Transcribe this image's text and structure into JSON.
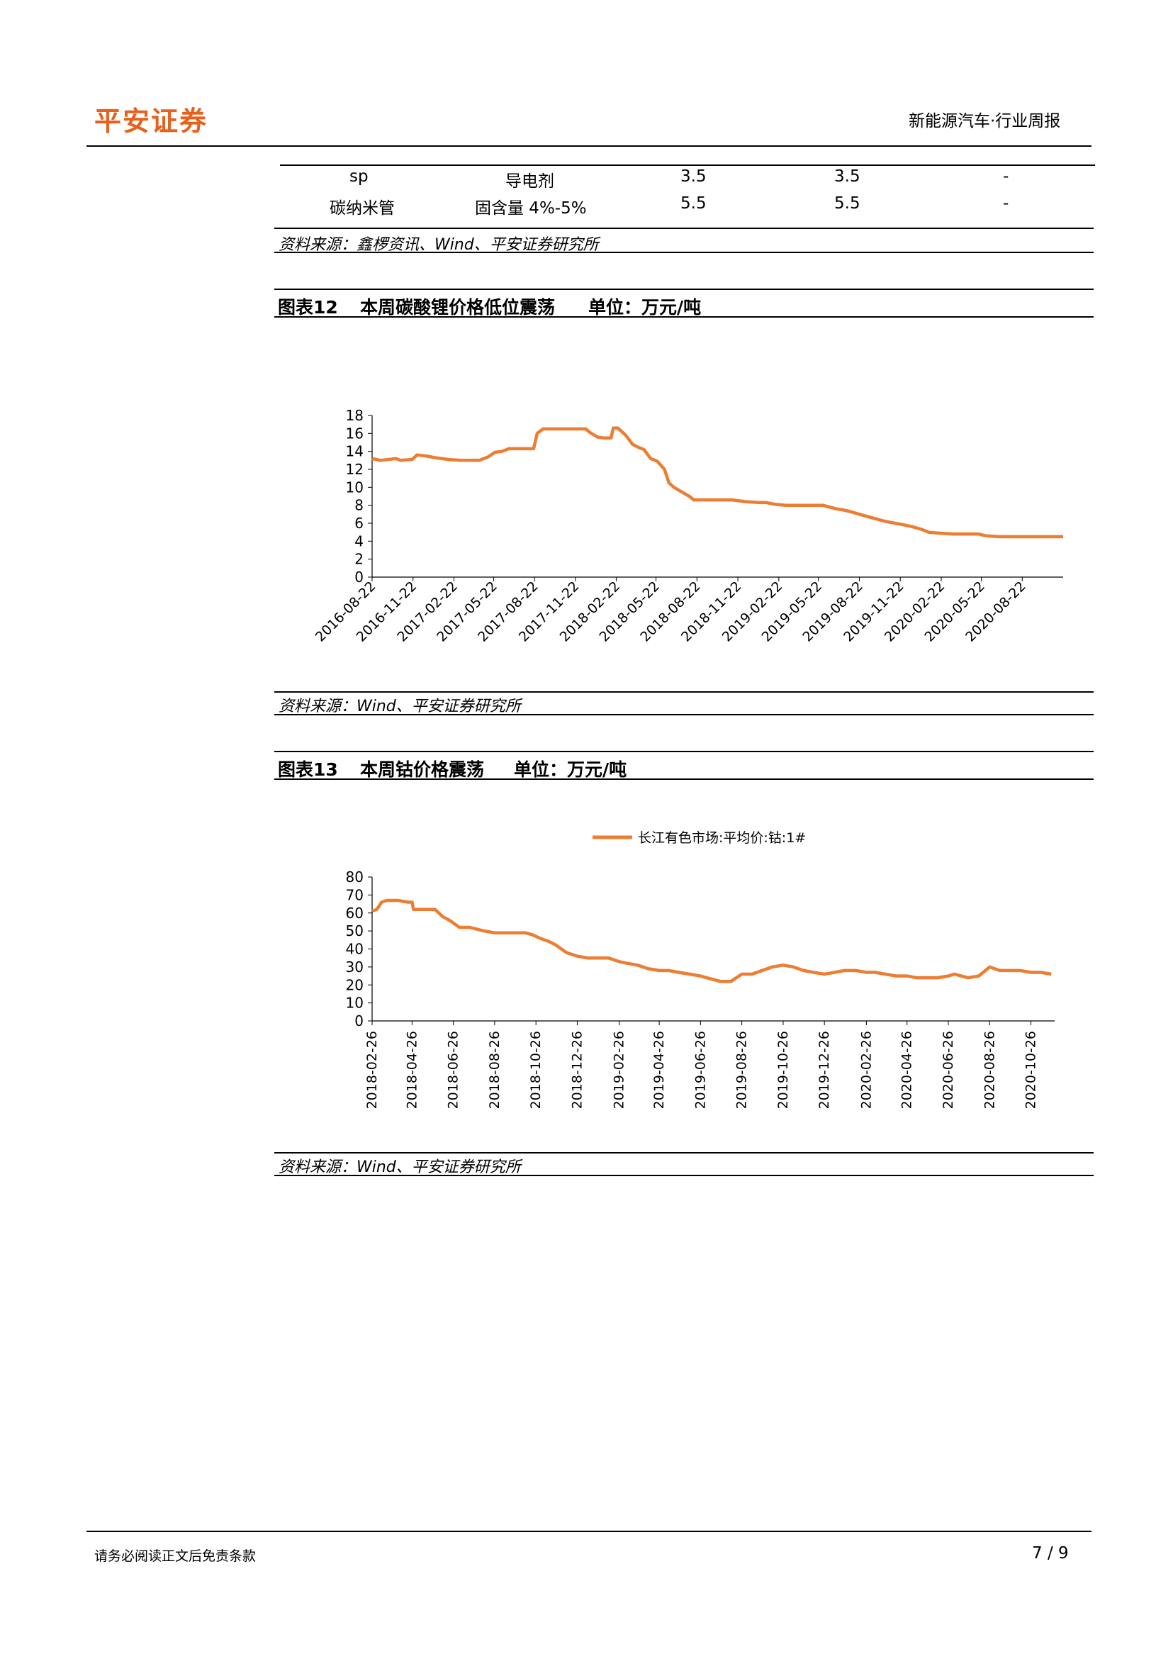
{
  "header": {
    "logo": "平安证券",
    "section": "新能源汽车·行业周报"
  },
  "table": {
    "rows": [
      [
        "sp",
        "导电剂",
        "3.5",
        "3.5",
        "-"
      ],
      [
        "碳纳米管",
        "固含量 4%-5%",
        "5.5",
        "5.5",
        "-"
      ]
    ],
    "source": "资料来源：鑫椤资讯、Wind、平安证券研究所"
  },
  "figure12": {
    "label": "图表12",
    "title": "本周碳酸锂价格低位震荡",
    "unit": "单位：万元/吨",
    "source": "资料来源：Wind、平安证券研究所"
  },
  "figure13": {
    "label": "图表13",
    "title": "本周钴价格震荡",
    "unit": "单位：万元/吨",
    "source": "资料来源：Wind、平安证券研究所"
  },
  "chart_data": [
    {
      "type": "line",
      "color": "#ed7d31",
      "ylim": [
        0,
        18
      ],
      "yticks": [
        0,
        2,
        4,
        6,
        8,
        10,
        12,
        14,
        16,
        18
      ],
      "xlim": [
        "2016-08-22",
        "2020-11-22"
      ],
      "xtick_labels": [
        "2016-08-22",
        "2016-11-22",
        "2017-02-22",
        "2017-05-22",
        "2017-08-22",
        "2017-11-22",
        "2018-02-22",
        "2018-05-22",
        "2018-08-22",
        "2018-11-22",
        "2019-02-22",
        "2019-05-22",
        "2019-08-22",
        "2019-11-22",
        "2020-02-22",
        "2020-05-22",
        "2020-08-22"
      ],
      "series": [
        {
          "x": [
            "2016-08-22",
            "2016-09-10",
            "2016-10-15",
            "2016-10-25",
            "2016-11-20",
            "2016-12-01",
            "2016-12-20",
            "2017-01-10",
            "2017-02-10",
            "2017-03-10",
            "2017-03-30",
            "2017-04-20",
            "2017-05-10",
            "2017-05-25",
            "2017-06-10",
            "2017-06-25",
            "2017-07-05",
            "2017-07-15",
            "2017-08-05",
            "2017-08-20",
            "2017-08-28",
            "2017-09-10",
            "2017-09-25",
            "2017-11-10",
            "2017-12-15",
            "2017-12-25",
            "2018-01-10",
            "2018-01-25",
            "2018-02-10",
            "2018-02-15",
            "2018-02-25",
            "2018-03-15",
            "2018-03-30",
            "2018-04-10",
            "2018-04-25",
            "2018-05-10",
            "2018-05-25",
            "2018-06-10",
            "2018-06-20",
            "2018-07-01",
            "2018-07-15",
            "2018-08-05",
            "2018-08-15",
            "2018-09-05",
            "2018-09-25",
            "2018-10-15",
            "2018-11-10",
            "2018-12-10",
            "2019-01-10",
            "2019-01-25",
            "2019-02-15",
            "2019-03-10",
            "2019-04-01",
            "2019-05-01",
            "2019-06-01",
            "2019-07-01",
            "2019-07-15",
            "2019-08-01",
            "2019-08-22",
            "2019-09-20",
            "2019-10-20",
            "2019-11-22",
            "2019-12-20",
            "2020-01-10",
            "2020-01-25",
            "2020-02-15",
            "2020-03-20",
            "2020-04-20",
            "2020-05-15",
            "2020-06-01",
            "2020-07-01",
            "2020-08-01",
            "2020-09-01",
            "2020-10-01",
            "2020-11-22"
          ],
          "values": [
            13.2,
            13.0,
            13.2,
            13.0,
            13.1,
            13.6,
            13.5,
            13.3,
            13.1,
            13.0,
            13.0,
            13.0,
            13.4,
            13.9,
            14.0,
            14.3,
            14.3,
            14.3,
            14.3,
            14.3,
            16.0,
            16.5,
            16.5,
            16.5,
            16.5,
            16.1,
            15.6,
            15.5,
            15.5,
            16.6,
            16.6,
            15.8,
            14.8,
            14.5,
            14.2,
            13.2,
            12.9,
            12.0,
            10.5,
            10.0,
            9.6,
            9.0,
            8.6,
            8.6,
            8.6,
            8.6,
            8.6,
            8.4,
            8.3,
            8.3,
            8.1,
            8.0,
            8.0,
            8.0,
            8.0,
            7.6,
            7.5,
            7.3,
            7.0,
            6.6,
            6.2,
            5.9,
            5.6,
            5.3,
            5.0,
            4.9,
            4.8,
            4.8,
            4.8,
            4.6,
            4.5,
            4.5,
            4.5,
            4.5,
            4.5
          ]
        }
      ]
    },
    {
      "type": "line",
      "color": "#ed7d31",
      "legend": "top-center",
      "ylim": [
        0,
        80
      ],
      "yticks": [
        0,
        10,
        20,
        30,
        40,
        50,
        60,
        70,
        80
      ],
      "xlim": [
        "2018-02-26",
        "2020-11-30"
      ],
      "xtick_labels": [
        "2018-02-26",
        "2018-04-26",
        "2018-06-26",
        "2018-08-26",
        "2018-10-26",
        "2018-12-26",
        "2019-02-26",
        "2019-04-26",
        "2019-06-26",
        "2019-08-26",
        "2019-10-26",
        "2019-12-26",
        "2020-02-26",
        "2020-04-26",
        "2020-06-26",
        "2020-08-26",
        "2020-10-26"
      ],
      "series": [
        {
          "name": "长江有色市场:平均价:钴:1#",
          "x": [
            "2018-02-26",
            "2018-03-05",
            "2018-03-12",
            "2018-03-20",
            "2018-04-05",
            "2018-04-20",
            "2018-04-26",
            "2018-04-28",
            "2018-05-15",
            "2018-05-30",
            "2018-06-10",
            "2018-06-20",
            "2018-07-05",
            "2018-07-20",
            "2018-08-10",
            "2018-08-26",
            "2018-09-10",
            "2018-09-25",
            "2018-10-10",
            "2018-10-20",
            "2018-11-01",
            "2018-11-15",
            "2018-11-25",
            "2018-12-10",
            "2018-12-26",
            "2019-01-10",
            "2019-01-25",
            "2019-02-10",
            "2019-02-26",
            "2019-03-10",
            "2019-03-25",
            "2019-04-10",
            "2019-04-26",
            "2019-05-10",
            "2019-05-25",
            "2019-06-10",
            "2019-06-26",
            "2019-07-05",
            "2019-07-15",
            "2019-07-25",
            "2019-08-10",
            "2019-08-26",
            "2019-09-10",
            "2019-09-25",
            "2019-10-10",
            "2019-10-26",
            "2019-11-10",
            "2019-11-25",
            "2019-12-10",
            "2019-12-26",
            "2020-01-10",
            "2020-01-25",
            "2020-02-10",
            "2020-02-26",
            "2020-03-10",
            "2020-03-25",
            "2020-04-10",
            "2020-04-26",
            "2020-05-10",
            "2020-05-25",
            "2020-06-10",
            "2020-06-26",
            "2020-07-05",
            "2020-07-15",
            "2020-07-25",
            "2020-08-10",
            "2020-08-26",
            "2020-09-10",
            "2020-09-25",
            "2020-10-10",
            "2020-10-26",
            "2020-11-10",
            "2020-11-25"
          ],
          "values": [
            61,
            62,
            66,
            67,
            67,
            66,
            66,
            62,
            62,
            62,
            58,
            56,
            52,
            52,
            50,
            49,
            49,
            49,
            49,
            48,
            46,
            44,
            42,
            38,
            36,
            35,
            35,
            35,
            33,
            32,
            31,
            29,
            28,
            28,
            27,
            26,
            25,
            24,
            23,
            22,
            22,
            26,
            26,
            28,
            30,
            31,
            30,
            28,
            27,
            26,
            27,
            28,
            28,
            27,
            27,
            26,
            25,
            25,
            24,
            24,
            24,
            25,
            26,
            25,
            24,
            25,
            30,
            28,
            28,
            28,
            27,
            27,
            26
          ]
        }
      ]
    }
  ],
  "footer": {
    "disclaimer": "请务必阅读正文后免责条款",
    "page": "7 / 9"
  }
}
